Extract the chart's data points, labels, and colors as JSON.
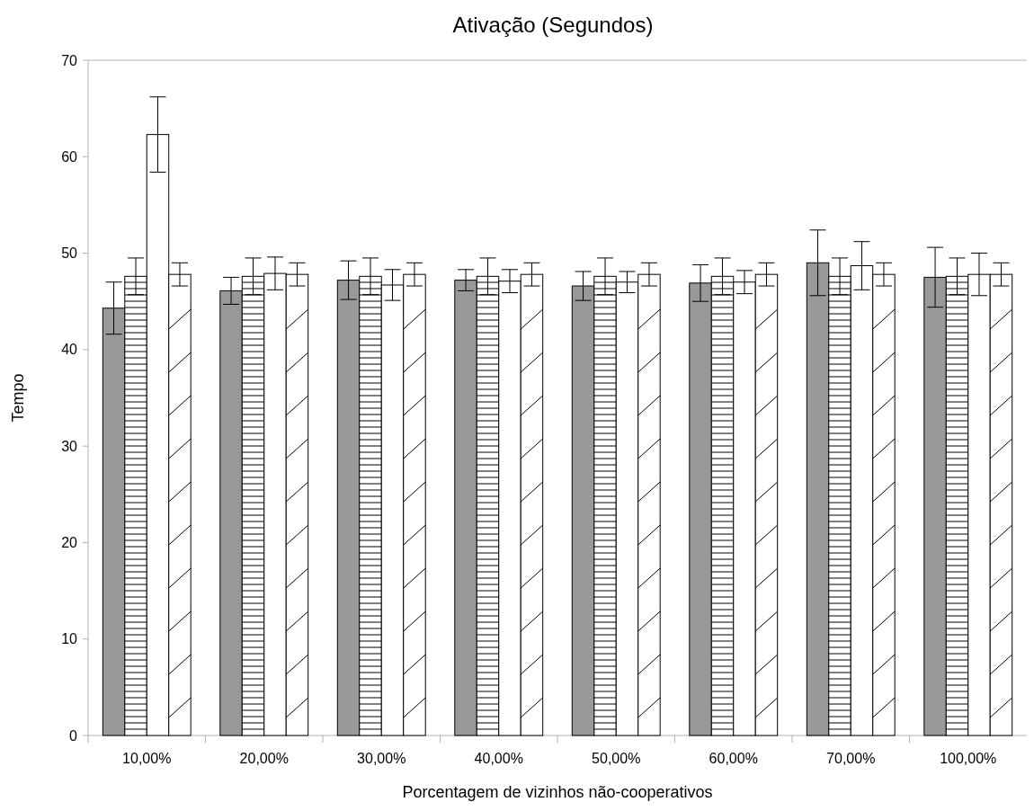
{
  "chart_data": {
    "type": "bar",
    "title": "Ativação (Segundos)",
    "xlabel": "Porcentagem de vizinhos não-cooperativos",
    "ylabel": "Tempo",
    "categories": [
      "10,00%",
      "20,00%",
      "30,00%",
      "40,00%",
      "50,00%",
      "60,00%",
      "70,00%",
      "100,00%"
    ],
    "series": [
      {
        "color": "#999999",
        "values": [
          44.3,
          46.1,
          47.2,
          47.2,
          46.6,
          46.9,
          49.0,
          47.5
        ],
        "errors": [
          2.7,
          1.4,
          2.0,
          1.1,
          1.5,
          1.9,
          3.4,
          3.1
        ]
      },
      {
        "color": "#ffffff",
        "values": [
          47.6,
          47.6,
          47.6,
          47.6,
          47.6,
          47.6,
          47.6,
          47.6
        ],
        "errors": [
          1.9,
          1.9,
          1.9,
          1.9,
          1.9,
          1.9,
          1.9,
          1.9
        ]
      },
      {
        "color": "#ffffff",
        "values": [
          62.3,
          47.9,
          46.7,
          47.1,
          47.0,
          47.0,
          48.7,
          47.8
        ],
        "errors": [
          3.9,
          1.7,
          1.6,
          1.2,
          1.1,
          1.2,
          2.5,
          2.2
        ]
      },
      {
        "color": "#ffffff",
        "values": [
          47.8,
          47.8,
          47.8,
          47.8,
          47.8,
          47.8,
          47.8,
          47.8
        ],
        "errors": [
          1.2,
          1.2,
          1.2,
          1.2,
          1.2,
          1.2,
          1.2,
          1.2
        ]
      }
    ],
    "ylim": [
      0,
      70
    ],
    "yticks": [
      0,
      10,
      20,
      30,
      40,
      50,
      60,
      70
    ],
    "grid": false
  }
}
